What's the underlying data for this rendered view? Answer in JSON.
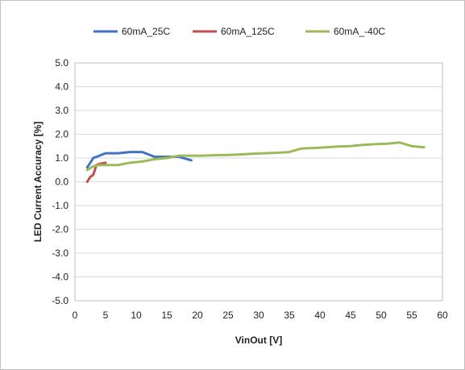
{
  "chart_data": {
    "type": "line",
    "title": "",
    "xlabel": "VinOut [V]",
    "ylabel": "LED Current Accuracy [%]",
    "xlim": [
      0,
      60
    ],
    "ylim": [
      -5,
      5
    ],
    "x_ticks": [
      "0",
      "5",
      "10",
      "15",
      "20",
      "25",
      "30",
      "35",
      "40",
      "45",
      "50",
      "55",
      "60"
    ],
    "y_ticks": [
      "5.0",
      "4.0",
      "3.0",
      "2.0",
      "1.0",
      "0.0",
      "-1.0",
      "-2.0",
      "-3.0",
      "-4.0",
      "-5.0"
    ],
    "grid": "horizontal",
    "legend_position": "top",
    "series": [
      {
        "name": "60mA_25C",
        "color": "#4472c4",
        "x": [
          2,
          3,
          4,
          5,
          7,
          9,
          11,
          13,
          15,
          17,
          19
        ],
        "y": [
          0.6,
          1.0,
          1.1,
          1.2,
          1.2,
          1.25,
          1.25,
          1.05,
          1.05,
          1.05,
          0.9
        ]
      },
      {
        "name": "60mA_125C",
        "color": "#c0504d",
        "x": [
          2,
          2.5,
          3,
          3.5,
          4,
          5
        ],
        "y": [
          0.0,
          0.2,
          0.3,
          0.7,
          0.75,
          0.8
        ]
      },
      {
        "name": "60mA_-40C",
        "color": "#9bbb59",
        "x": [
          2,
          3,
          4,
          5,
          7,
          9,
          11,
          13,
          15,
          17,
          19,
          21,
          23,
          25,
          27,
          29,
          31,
          33,
          35,
          37,
          39,
          41,
          43,
          45,
          47,
          49,
          51,
          53,
          55,
          57
        ],
        "y": [
          0.5,
          0.65,
          0.7,
          0.7,
          0.7,
          0.8,
          0.85,
          0.95,
          1.0,
          1.1,
          1.1,
          1.1,
          1.12,
          1.13,
          1.15,
          1.18,
          1.2,
          1.22,
          1.25,
          1.4,
          1.42,
          1.45,
          1.48,
          1.5,
          1.55,
          1.58,
          1.6,
          1.65,
          1.5,
          1.45
        ]
      }
    ]
  }
}
